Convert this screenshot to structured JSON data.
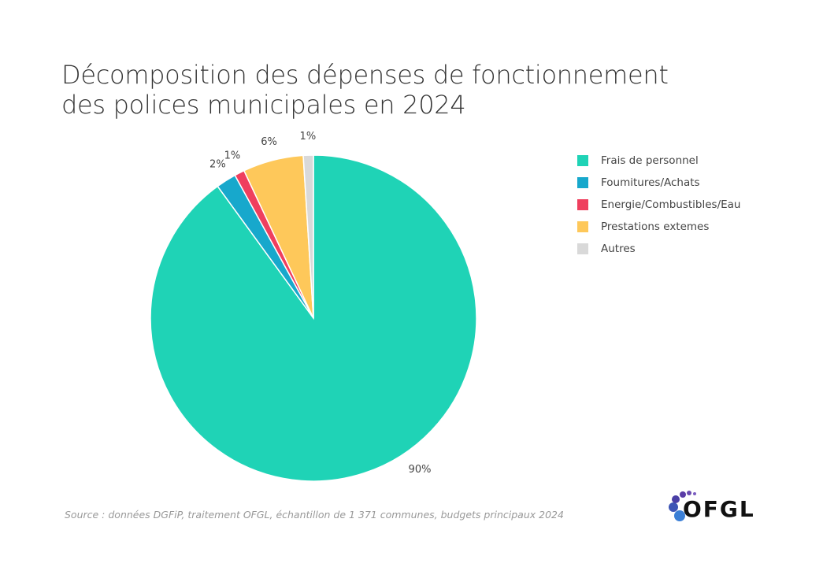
{
  "chart_data": {
    "type": "pie",
    "title": "Décomposition des dépenses de fonctionnement des polices municipales en 2024",
    "title_lines": [
      "Décomposition des dépenses de fonctionnement",
      "des polices municipales en 2024"
    ],
    "categories": [
      "Frais de personnel",
      "Foumitures/Achats",
      "Energie/Combustibles/Eau",
      "Prestations extemes",
      "Autres"
    ],
    "values": [
      90,
      2,
      1,
      6,
      1
    ],
    "data_labels": [
      "90%",
      "2%",
      "1%",
      "6%",
      "1%"
    ],
    "colors": [
      "#1fd3b6",
      "#17a8cc",
      "#ef3f5e",
      "#fec85a",
      "#d9d9d9"
    ],
    "legend_position": "right",
    "start_angle": "top, clockwise"
  },
  "source": "Source : données DGFiP, traitement OFGL, échantillon de 1 371 communes, budgets principaux 2024",
  "logo": {
    "text": "OFGL"
  }
}
